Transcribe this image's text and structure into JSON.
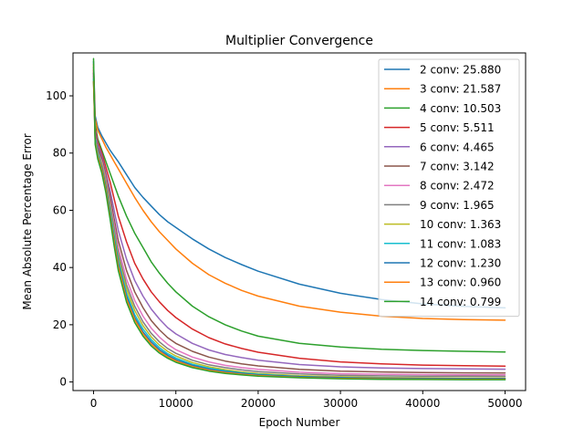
{
  "chart_data": {
    "type": "line",
    "title": "Multiplier Convergence",
    "xlabel": "Epoch Number",
    "ylabel": "Mean Absolute Percentage Error",
    "xlim": [
      -2500,
      52500
    ],
    "ylim": [
      -3,
      115
    ],
    "xticks": [
      0,
      10000,
      20000,
      30000,
      40000,
      50000
    ],
    "yticks": [
      0,
      20,
      40,
      60,
      80,
      100
    ],
    "grid": false,
    "legend_position": "top-right",
    "x": [
      0,
      200,
      500,
      1000,
      1500,
      2000,
      2500,
      3000,
      4000,
      5000,
      6000,
      7000,
      8000,
      9000,
      10000,
      12000,
      14000,
      16000,
      18000,
      20000,
      25000,
      30000,
      35000,
      40000,
      45000,
      50000
    ],
    "series": [
      {
        "name": "2 conv: 25.880",
        "color": "#1f77b4",
        "values": [
          112,
          93,
          89,
          86,
          83.5,
          81,
          79,
          77,
          72.5,
          68,
          64.5,
          61.5,
          58.5,
          56,
          54,
          50,
          46.5,
          43.5,
          41,
          38.7,
          34.2,
          31,
          28.8,
          27.3,
          26.4,
          25.88
        ]
      },
      {
        "name": "3 conv: 21.587",
        "color": "#ff7f0e",
        "values": [
          111,
          92,
          88,
          85,
          82,
          79.5,
          77,
          74.5,
          69.5,
          64.5,
          60,
          56,
          52.5,
          49.5,
          46.5,
          41.5,
          37.5,
          34.5,
          32,
          30,
          26.5,
          24.4,
          23,
          22.2,
          21.8,
          21.587
        ]
      },
      {
        "name": "4 conv: 10.503",
        "color": "#2ca02c",
        "values": [
          110,
          90,
          85,
          81,
          77,
          73,
          69,
          65,
          58,
          52,
          47,
          42,
          38,
          34.5,
          31.5,
          26.5,
          22.8,
          20,
          17.8,
          16,
          13.5,
          12.2,
          11.4,
          11,
          10.7,
          10.503
        ]
      },
      {
        "name": "5 conv: 5.511",
        "color": "#d62728",
        "values": [
          109,
          89,
          84,
          80,
          75,
          70,
          64,
          58,
          49,
          41.5,
          36,
          31.5,
          28,
          25,
          22.5,
          18.5,
          15.5,
          13.3,
          11.7,
          10.4,
          8.3,
          7,
          6.3,
          5.9,
          5.7,
          5.511
        ]
      },
      {
        "name": "6 conv: 4.465",
        "color": "#9467bd",
        "values": [
          108,
          88,
          83,
          79,
          73,
          67,
          60,
          53,
          43,
          35.5,
          30,
          25.5,
          22,
          19,
          16.8,
          13.5,
          11.2,
          9.6,
          8.5,
          7.6,
          6.1,
          5.3,
          4.9,
          4.7,
          4.55,
          4.465
        ]
      },
      {
        "name": "7 conv: 3.142",
        "color": "#8c564b",
        "values": [
          108,
          87,
          82,
          78,
          72,
          65,
          57,
          49.5,
          39,
          31.5,
          26,
          21.5,
          18.2,
          15.5,
          13.5,
          10.7,
          8.7,
          7.3,
          6.3,
          5.6,
          4.4,
          3.8,
          3.5,
          3.3,
          3.2,
          3.142
        ]
      },
      {
        "name": "8 conv: 2.472",
        "color": "#e377c2",
        "values": [
          107,
          86,
          81,
          77,
          71,
          63,
          55,
          47,
          36,
          28.5,
          23,
          18.8,
          15.7,
          13.2,
          11.3,
          8.7,
          7,
          5.8,
          5,
          4.4,
          3.4,
          2.9,
          2.7,
          2.58,
          2.5,
          2.472
        ]
      },
      {
        "name": "9 conv: 1.965",
        "color": "#7f7f7f",
        "values": [
          107,
          86,
          81,
          76,
          70,
          62,
          53.5,
          45,
          34,
          26.5,
          21,
          17,
          14,
          11.7,
          10,
          7.6,
          6,
          5,
          4.2,
          3.6,
          2.8,
          2.35,
          2.15,
          2.05,
          2,
          1.965
        ]
      },
      {
        "name": "10 conv: 1.363",
        "color": "#bcbd22",
        "values": [
          106,
          85,
          80,
          76,
          69,
          61,
          52,
          43.5,
          32.5,
          25,
          19.7,
          15.8,
          12.9,
          10.7,
          9.1,
          6.8,
          5.3,
          4.3,
          3.5,
          3,
          2.2,
          1.8,
          1.55,
          1.45,
          1.4,
          1.363
        ]
      },
      {
        "name": "11 conv: 1.083",
        "color": "#17becf",
        "values": [
          106,
          85,
          80,
          75,
          68,
          60,
          51,
          42.5,
          31,
          23.5,
          18.5,
          14.8,
          12,
          9.9,
          8.4,
          6.2,
          4.8,
          3.9,
          3.2,
          2.7,
          1.9,
          1.5,
          1.28,
          1.17,
          1.11,
          1.083
        ]
      },
      {
        "name": "12 conv: 1.230",
        "color": "#1f77b4",
        "values": [
          105,
          84,
          79,
          75,
          68,
          59,
          50,
          41.5,
          30,
          22.5,
          17.5,
          14,
          11.3,
          9.3,
          7.8,
          5.8,
          4.5,
          3.6,
          3,
          2.5,
          1.85,
          1.5,
          1.35,
          1.28,
          1.25,
          1.23
        ]
      },
      {
        "name": "13 conv: 0.960",
        "color": "#ff7f0e",
        "values": [
          105,
          84,
          79,
          74,
          67,
          58,
          49,
          40.5,
          29,
          21.8,
          16.8,
          13.3,
          10.7,
          8.8,
          7.4,
          5.4,
          4.1,
          3.3,
          2.7,
          2.25,
          1.6,
          1.25,
          1.08,
          1,
          0.97,
          0.96
        ]
      },
      {
        "name": "14 conv: 0.799",
        "color": "#2ca02c",
        "values": [
          113,
          83,
          78,
          73,
          66,
          57,
          47.5,
          39,
          28,
          20.8,
          16,
          12.6,
          10.1,
          8.3,
          6.9,
          5,
          3.8,
          3,
          2.45,
          2.05,
          1.45,
          1.1,
          0.93,
          0.85,
          0.81,
          0.799
        ]
      }
    ]
  }
}
